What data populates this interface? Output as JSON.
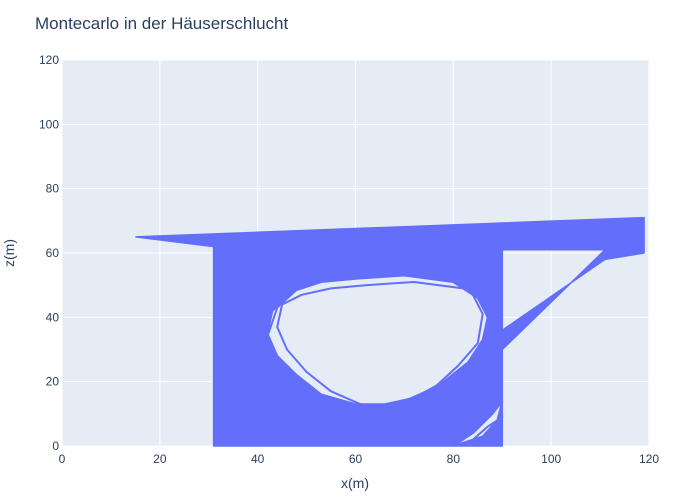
{
  "chart_data": {
    "type": "line",
    "title": "Montecarlo in der Häuserschlucht",
    "xlabel": "x(m)",
    "ylabel": "z(m)",
    "xlim": [
      0,
      120
    ],
    "ylim": [
      0,
      120
    ],
    "x_ticks": [
      0,
      20,
      40,
      60,
      80,
      100,
      120
    ],
    "y_ticks": [
      0,
      20,
      40,
      60,
      80,
      100,
      120
    ],
    "x_tick_labels": [
      "0",
      "20",
      "40",
      "60",
      "80",
      "100",
      "120"
    ],
    "y_tick_labels": [
      "0",
      "20",
      "40",
      "60",
      "80",
      "100",
      "120"
    ],
    "grid": true,
    "legend": "none",
    "colors": {
      "series": "#636efa",
      "plot_background": "#e5ecf6",
      "grid": "#ffffff",
      "text": "#2a3f5f"
    },
    "series": [
      {
        "x": [
          15,
          31,
          31,
          90,
          90,
          111,
          119,
          119,
          15
        ],
        "y": [
          65,
          62,
          0,
          0,
          61,
          61,
          62,
          71,
          65
        ]
      },
      {
        "x": [
          90,
          111,
          119,
          119,
          111,
          90
        ],
        "y": [
          30,
          61,
          62,
          60,
          58,
          36
        ]
      },
      {
        "x": [
          60,
          70,
          80,
          85,
          87,
          86,
          83,
          78,
          72,
          66,
          60,
          53,
          48,
          44,
          42,
          43,
          47,
          53,
          60
        ],
        "y": [
          52,
          53,
          51,
          46,
          40,
          33,
          26,
          20,
          15,
          13,
          13,
          16,
          22,
          28,
          35,
          42,
          48,
          51,
          52
        ]
      },
      {
        "x": [
          58,
          68,
          79,
          84,
          86,
          85,
          81,
          76,
          70,
          64,
          57,
          51,
          46,
          43,
          42,
          44,
          49,
          58
        ],
        "y": [
          54,
          55,
          52,
          47,
          41,
          32,
          25,
          18,
          14,
          12,
          12,
          15,
          20,
          27,
          34,
          43,
          50,
          54
        ]
      },
      {
        "x": [
          62,
          72,
          82,
          88,
          89,
          87,
          84,
          79,
          73,
          67,
          61,
          55,
          50,
          46,
          44,
          45,
          49,
          55,
          62
        ],
        "y": [
          50,
          51,
          49,
          44,
          38,
          31,
          24,
          19,
          15,
          12,
          13,
          17,
          23,
          30,
          37,
          44,
          47,
          49,
          50
        ]
      },
      {
        "x": [
          80,
          84,
          88,
          90,
          89,
          86,
          82,
          80
        ],
        "y": [
          0,
          4,
          10,
          14,
          8,
          3,
          1,
          0
        ]
      },
      {
        "x": [
          84,
          87,
          90,
          89,
          86,
          84
        ],
        "y": [
          2,
          6,
          9,
          5,
          2,
          2
        ]
      }
    ]
  }
}
